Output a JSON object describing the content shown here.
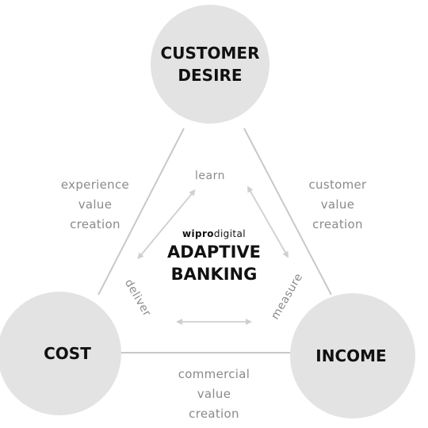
{
  "nodes": {
    "top": "CUSTOMER\nDESIRE",
    "left": "COST",
    "right": "INCOME"
  },
  "edges": {
    "left": "experience\nvalue\ncreation",
    "right": "customer\nvalue\ncreation",
    "bottom": "commercial\nvalue\ncreation"
  },
  "inner": {
    "learn": "learn",
    "deliver": "deliver",
    "measure": "measure"
  },
  "center": {
    "brand_bold": "wipro",
    "brand_light": "digital",
    "title": "ADAPTIVE\nBANKING"
  },
  "colors": {
    "circle_fill": "#e3e3e3",
    "line": "#c8c8c8",
    "arrow": "#cfcfcf",
    "muted_text": "#8a8a8a",
    "heading_text": "#111111"
  }
}
